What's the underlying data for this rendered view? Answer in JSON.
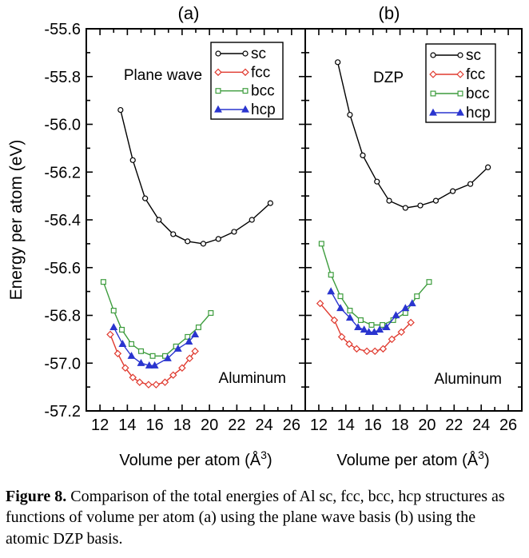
{
  "figure": {
    "caption_label": "Figure 8.",
    "caption_text": " Comparison of the total energies of Al sc, fcc, bcc, hcp structures as functions of volume per atom (a) using the plane wave basis (b) using the atomic DZP basis."
  },
  "colors": {
    "sc": "#000000",
    "fcc": "#e03a2f",
    "bcc": "#3d9c3d",
    "hcp": "#2a35cf"
  },
  "chart_data": [
    {
      "type": "line",
      "panel_label": "(a)",
      "basis_label": "Plane wave",
      "material_label": "Aluminum",
      "xlabel": {
        "pre": "Volume per atom (Å",
        "sup": "3",
        "post": ")"
      },
      "ylabel": "Energy per atom (eV)",
      "xlim": [
        11,
        27
      ],
      "ylim": [
        -57.2,
        -55.6
      ],
      "xticks": [
        "12",
        "14",
        "16",
        "18",
        "20",
        "22",
        "24",
        "26"
      ],
      "yticks": [
        "-55.6",
        "-55.8",
        "-56.0",
        "-56.2",
        "-56.4",
        "-56.6",
        "-56.8",
        "-57.0",
        "-57.2"
      ],
      "legend_position": "top-right",
      "series": [
        {
          "name": "sc",
          "color": "#000000",
          "marker": "circle",
          "open": true,
          "x": [
            13.5,
            14.4,
            15.3,
            16.3,
            17.35,
            18.4,
            19.55,
            20.65,
            21.8,
            23.1,
            24.45
          ],
          "y": [
            -55.94,
            -56.15,
            -56.31,
            -56.4,
            -56.46,
            -56.49,
            -56.5,
            -56.48,
            -56.45,
            -56.4,
            -56.33
          ]
        },
        {
          "name": "fcc",
          "color": "#e03a2f",
          "marker": "diamond",
          "open": true,
          "x": [
            12.75,
            13.3,
            13.85,
            14.4,
            14.9,
            15.55,
            16.1,
            16.75,
            17.35,
            18.0,
            18.55,
            18.95
          ],
          "y": [
            -56.88,
            -56.96,
            -57.02,
            -57.06,
            -57.08,
            -57.09,
            -57.09,
            -57.08,
            -57.05,
            -57.02,
            -56.98,
            -56.95
          ]
        },
        {
          "name": "bcc",
          "color": "#3d9c3d",
          "marker": "square",
          "open": true,
          "x": [
            12.25,
            13.0,
            13.6,
            14.3,
            15.0,
            15.85,
            16.75,
            17.55,
            18.4,
            19.2,
            20.1
          ],
          "y": [
            -56.66,
            -56.78,
            -56.86,
            -56.92,
            -56.95,
            -56.97,
            -56.97,
            -56.93,
            -56.89,
            -56.85,
            -56.79
          ]
        },
        {
          "name": "hcp",
          "color": "#2a35cf",
          "marker": "triangle",
          "open": false,
          "x": [
            13.0,
            13.65,
            14.3,
            15.0,
            15.6,
            16.0,
            16.95,
            17.7,
            18.5,
            18.95
          ],
          "y": [
            -56.85,
            -56.92,
            -56.97,
            -57.0,
            -57.01,
            -57.01,
            -56.98,
            -56.94,
            -56.91,
            -56.88
          ]
        }
      ]
    },
    {
      "type": "line",
      "panel_label": "(b)",
      "basis_label": "DZP",
      "material_label": "Aluminum",
      "xlabel": {
        "pre": "Volume per atom (Å",
        "sup": "3",
        "post": ")"
      },
      "ylabel": "",
      "xlim": [
        11,
        27
      ],
      "ylim": [
        -57.2,
        -55.6
      ],
      "xticks": [
        "12",
        "14",
        "16",
        "18",
        "20",
        "22",
        "24",
        "26"
      ],
      "yticks": [
        "-55.6",
        "-55.8",
        "-56.0",
        "-56.2",
        "-56.4",
        "-56.6",
        "-56.8",
        "-57.0",
        "-57.2"
      ],
      "legend_position": "top-right",
      "series": [
        {
          "name": "sc",
          "color": "#000000",
          "marker": "circle",
          "open": true,
          "x": [
            13.4,
            14.3,
            15.25,
            16.3,
            17.2,
            18.4,
            19.5,
            20.65,
            21.9,
            23.2,
            24.5
          ],
          "y": [
            -55.74,
            -55.96,
            -56.13,
            -56.24,
            -56.32,
            -56.35,
            -56.34,
            -56.32,
            -56.28,
            -56.25,
            -56.18
          ]
        },
        {
          "name": "fcc",
          "color": "#e03a2f",
          "marker": "diamond",
          "open": true,
          "x": [
            12.1,
            13.15,
            13.7,
            14.25,
            14.8,
            15.55,
            16.15,
            16.75,
            17.4,
            18.1,
            18.8
          ],
          "y": [
            -56.75,
            -56.82,
            -56.89,
            -56.92,
            -56.94,
            -56.95,
            -56.95,
            -56.94,
            -56.9,
            -56.87,
            -56.83
          ]
        },
        {
          "name": "bcc",
          "color": "#3d9c3d",
          "marker": "square",
          "open": true,
          "x": [
            12.2,
            12.9,
            13.6,
            14.3,
            15.1,
            15.9,
            16.7,
            17.5,
            18.4,
            19.25,
            20.15
          ],
          "y": [
            -56.5,
            -56.63,
            -56.72,
            -56.78,
            -56.82,
            -56.84,
            -56.84,
            -56.82,
            -56.79,
            -56.72,
            -56.66
          ]
        },
        {
          "name": "hcp",
          "color": "#2a35cf",
          "marker": "triangle",
          "open": false,
          "x": [
            12.9,
            13.6,
            14.3,
            14.9,
            15.35,
            15.7,
            16.1,
            16.5,
            17.0,
            17.7,
            18.4,
            18.9
          ],
          "y": [
            -56.7,
            -56.77,
            -56.81,
            -56.85,
            -56.86,
            -56.87,
            -56.87,
            -56.86,
            -56.85,
            -56.8,
            -56.77,
            -56.75
          ]
        }
      ]
    }
  ]
}
